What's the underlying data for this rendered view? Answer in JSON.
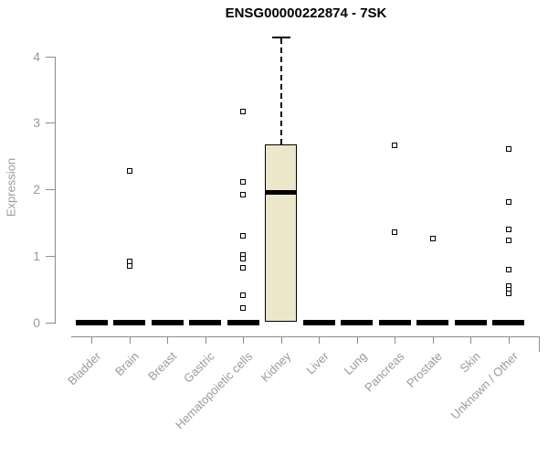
{
  "title": "ENSG00000222874 - 7SK",
  "colors": {
    "box_fill": "#ece6cb",
    "box_border": "#000000",
    "axis_line": "#8c8c8c",
    "tick_text": "#9a9a9a",
    "title_text": "#000000"
  },
  "chart_data": {
    "type": "boxplot",
    "title": "ENSG00000222874 - 7SK",
    "xlabel": "",
    "ylabel": "Expression",
    "ylim": [
      0,
      4.3
    ],
    "yticks": [
      0,
      1,
      2,
      3,
      4
    ],
    "grid": false,
    "legend": "none",
    "categories": [
      "Bladder",
      "Brain",
      "Breast",
      "Gastric",
      "Hematopoietic cells",
      "Kidney",
      "Liver",
      "Lung",
      "Pancreas",
      "Prostate",
      "Skin",
      "Unknown / Other"
    ],
    "series": [
      {
        "name": "Bladder",
        "q1": 0,
        "median": 0,
        "q3": 0,
        "whisker_low": 0,
        "whisker_high": 0,
        "outliers": []
      },
      {
        "name": "Brain",
        "q1": 0,
        "median": 0,
        "q3": 0,
        "whisker_low": 0,
        "whisker_high": 0,
        "outliers": [
          2.28,
          0.92,
          0.84
        ]
      },
      {
        "name": "Breast",
        "q1": 0,
        "median": 0,
        "q3": 0,
        "whisker_low": 0,
        "whisker_high": 0,
        "outliers": []
      },
      {
        "name": "Gastric",
        "q1": 0,
        "median": 0,
        "q3": 0,
        "whisker_low": 0,
        "whisker_high": 0,
        "outliers": []
      },
      {
        "name": "Hematopoietic cells",
        "q1": 0,
        "median": 0,
        "q3": 0,
        "whisker_low": 0,
        "whisker_high": 0,
        "outliers": [
          3.17,
          2.11,
          1.92,
          1.3,
          1.01,
          0.95,
          0.82,
          0.41,
          0.21
        ]
      },
      {
        "name": "Kidney",
        "q1": 0,
        "median": 1.96,
        "q3": 2.68,
        "whisker_low": 0,
        "whisker_high": 4.3,
        "outliers": []
      },
      {
        "name": "Liver",
        "q1": 0,
        "median": 0,
        "q3": 0,
        "whisker_low": 0,
        "whisker_high": 0,
        "outliers": []
      },
      {
        "name": "Lung",
        "q1": 0,
        "median": 0,
        "q3": 0,
        "whisker_low": 0,
        "whisker_high": 0,
        "outliers": []
      },
      {
        "name": "Pancreas",
        "q1": 0,
        "median": 0,
        "q3": 0,
        "whisker_low": 0,
        "whisker_high": 0,
        "outliers": [
          2.66,
          1.35
        ]
      },
      {
        "name": "Prostate",
        "q1": 0,
        "median": 0,
        "q3": 0,
        "whisker_low": 0,
        "whisker_high": 0,
        "outliers": [
          1.26
        ]
      },
      {
        "name": "Skin",
        "q1": 0,
        "median": 0,
        "q3": 0,
        "whisker_low": 0,
        "whisker_high": 0,
        "outliers": []
      },
      {
        "name": "Unknown / Other",
        "q1": 0,
        "median": 0,
        "q3": 0,
        "whisker_low": 0,
        "whisker_high": 0,
        "outliers": [
          2.61,
          1.81,
          1.39,
          1.23,
          0.79,
          0.55,
          0.49,
          0.43
        ]
      }
    ]
  }
}
